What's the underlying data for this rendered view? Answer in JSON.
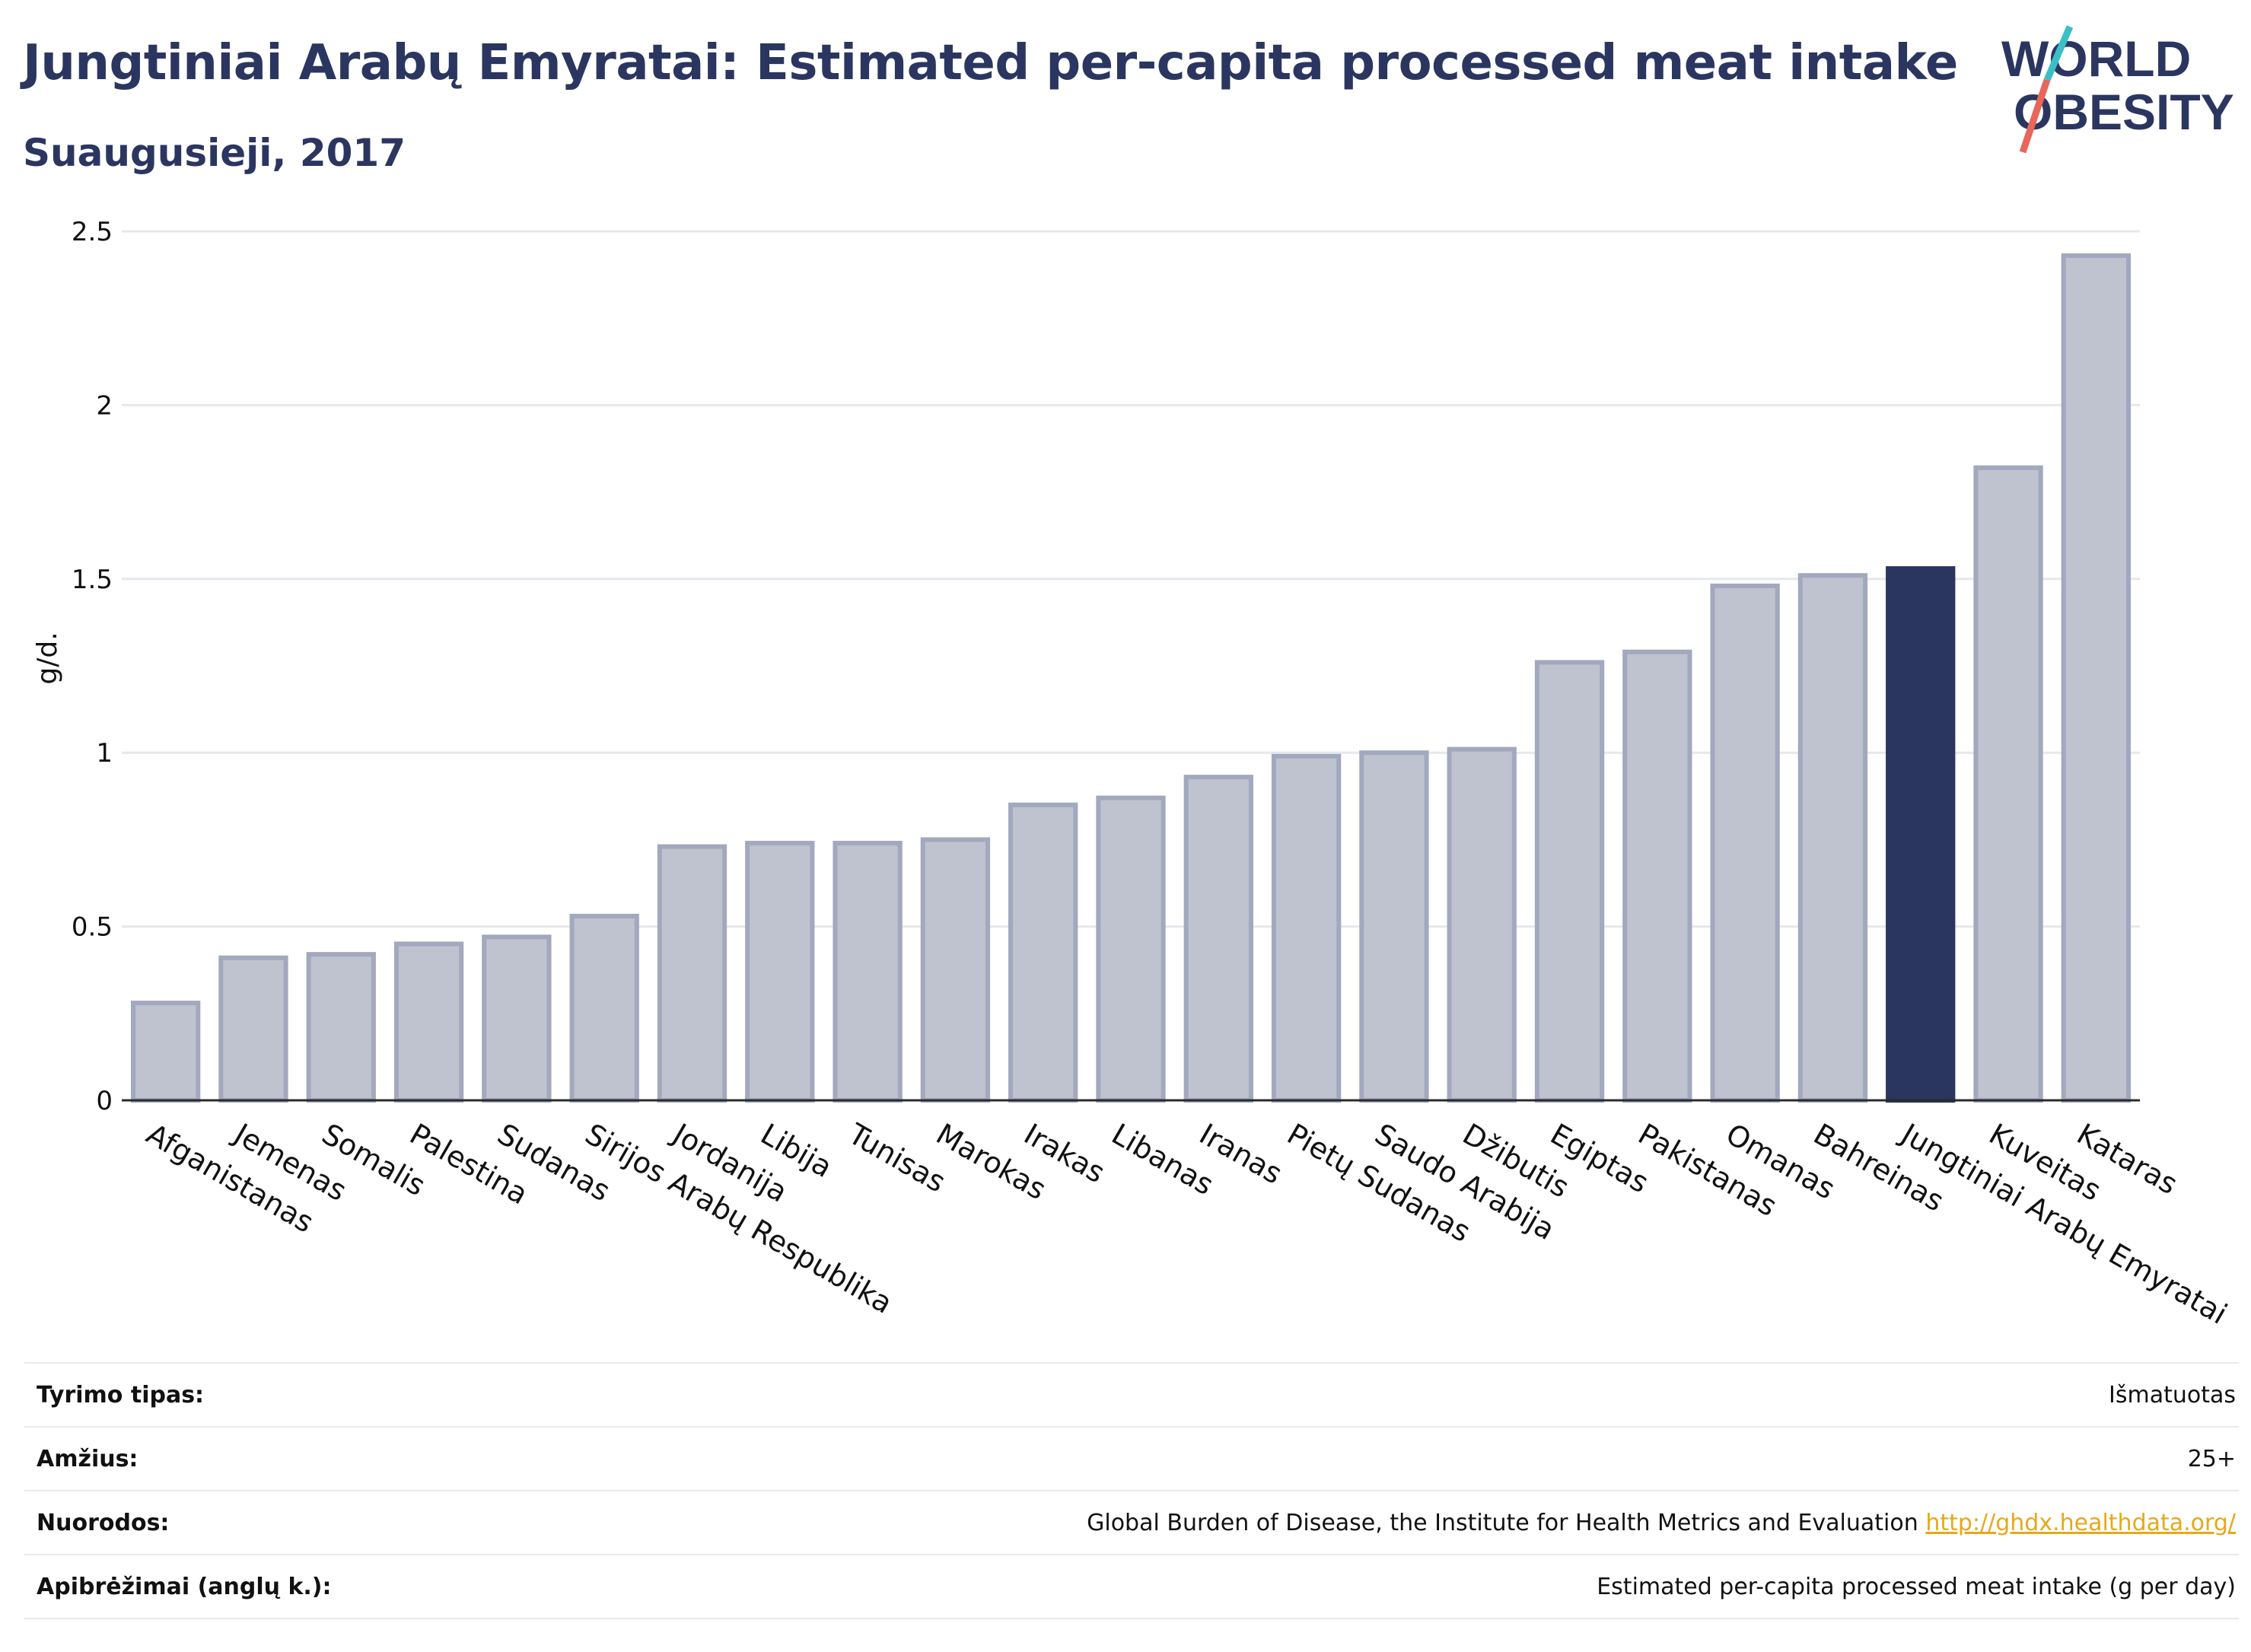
{
  "title": "Jungtiniai Arabų Emyratai: Estimated per-capita processed meat intake",
  "subtitle": "Suaugusieji, 2017",
  "logo": {
    "line1": "WORLD",
    "line2": "OBESITY",
    "accent_colors": [
      "#3bbfc6",
      "#e8665a"
    ]
  },
  "colors": {
    "highlight": "#2b3660",
    "bar": "#bfc3cf",
    "bar_border": "#a2a8bd",
    "grid": "#e6e8ed"
  },
  "chart_data": {
    "type": "bar",
    "title": "Jungtiniai Arabų Emyratai: Estimated per-capita processed meat intake",
    "subtitle": "Suaugusieji, 2017",
    "ylabel": "g/d.",
    "xlabel": "",
    "ylim": [
      0,
      2.5
    ],
    "yticks": [
      0,
      0.5,
      1,
      1.5,
      2,
      2.5
    ],
    "ytick_labels": [
      "0",
      "0.5",
      "1",
      "1.5",
      "2",
      "2.5"
    ],
    "grid": true,
    "highlight": "Jungtiniai Arabų Emyratai",
    "categories": [
      "Afganistanas",
      "Jemenas",
      "Somalis",
      "Palestina",
      "Sudanas",
      "Sirijos Arabų Respublika",
      "Jordanija",
      "Libija",
      "Tunisas",
      "Marokas",
      "Irakas",
      "Libanas",
      "Iranas",
      "Pietų Sudanas",
      "Saudo Arabija",
      "Džibutis",
      "Egiptas",
      "Pakistanas",
      "Omanas",
      "Bahreinas",
      "Jungtiniai Arabų Emyratai",
      "Kuveitas",
      "Kataras"
    ],
    "values": [
      0.28,
      0.41,
      0.42,
      0.45,
      0.47,
      0.53,
      0.73,
      0.74,
      0.74,
      0.75,
      0.85,
      0.87,
      0.93,
      0.99,
      1.0,
      1.01,
      1.26,
      1.29,
      1.48,
      1.51,
      1.53,
      1.82,
      2.43
    ]
  },
  "info": [
    {
      "label": "Tyrimo tipas:",
      "value": "Išmatuotas"
    },
    {
      "label": "Amžius:",
      "value": "25+"
    },
    {
      "label": "Nuorodos:",
      "value": "Global Burden of Disease, the Institute for Health Metrics and Evaluation",
      "link": "http://ghdx.healthdata.org/"
    },
    {
      "label": "Apibrėžimai (anglų k.):",
      "value": "Estimated per-capita processed meat intake (g per day)"
    }
  ]
}
